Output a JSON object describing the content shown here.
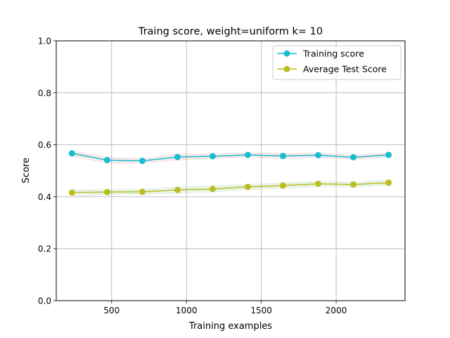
{
  "chart_data": {
    "type": "line",
    "title": "Traing score, weight=uniform k= 10",
    "xlabel": "Training examples",
    "ylabel": "Score",
    "xlim": [
      130,
      2460
    ],
    "ylim": [
      0.0,
      1.0
    ],
    "xticks": [
      500,
      1000,
      1500,
      2000
    ],
    "xtick_labels": [
      "500",
      "1000",
      "1500",
      "2000"
    ],
    "yticks": [
      0.0,
      0.2,
      0.4,
      0.6,
      0.8,
      1.0
    ],
    "ytick_labels": [
      "0.0",
      "0.2",
      "0.4",
      "0.6",
      "0.8",
      "1.0"
    ],
    "grid": true,
    "legend_position": "top-right",
    "x": [
      235,
      470,
      705,
      940,
      1175,
      1410,
      1645,
      1880,
      2115,
      2350
    ],
    "series": [
      {
        "name": "Training score",
        "color": "#17becf",
        "band_color": "#d62728",
        "values": [
          0.567,
          0.541,
          0.538,
          0.553,
          0.556,
          0.561,
          0.557,
          0.56,
          0.552,
          0.561
        ],
        "std": [
          0.01,
          0.012,
          0.008,
          0.012,
          0.01,
          0.008,
          0.01,
          0.008,
          0.009,
          0.008
        ]
      },
      {
        "name": "Average Test Score",
        "color": "#bcbd22",
        "band_color": "#2ca02c",
        "values": [
          0.416,
          0.418,
          0.419,
          0.426,
          0.43,
          0.438,
          0.443,
          0.45,
          0.447,
          0.454
        ],
        "std": [
          0.012,
          0.01,
          0.01,
          0.012,
          0.012,
          0.01,
          0.01,
          0.01,
          0.01,
          0.01
        ]
      }
    ]
  }
}
